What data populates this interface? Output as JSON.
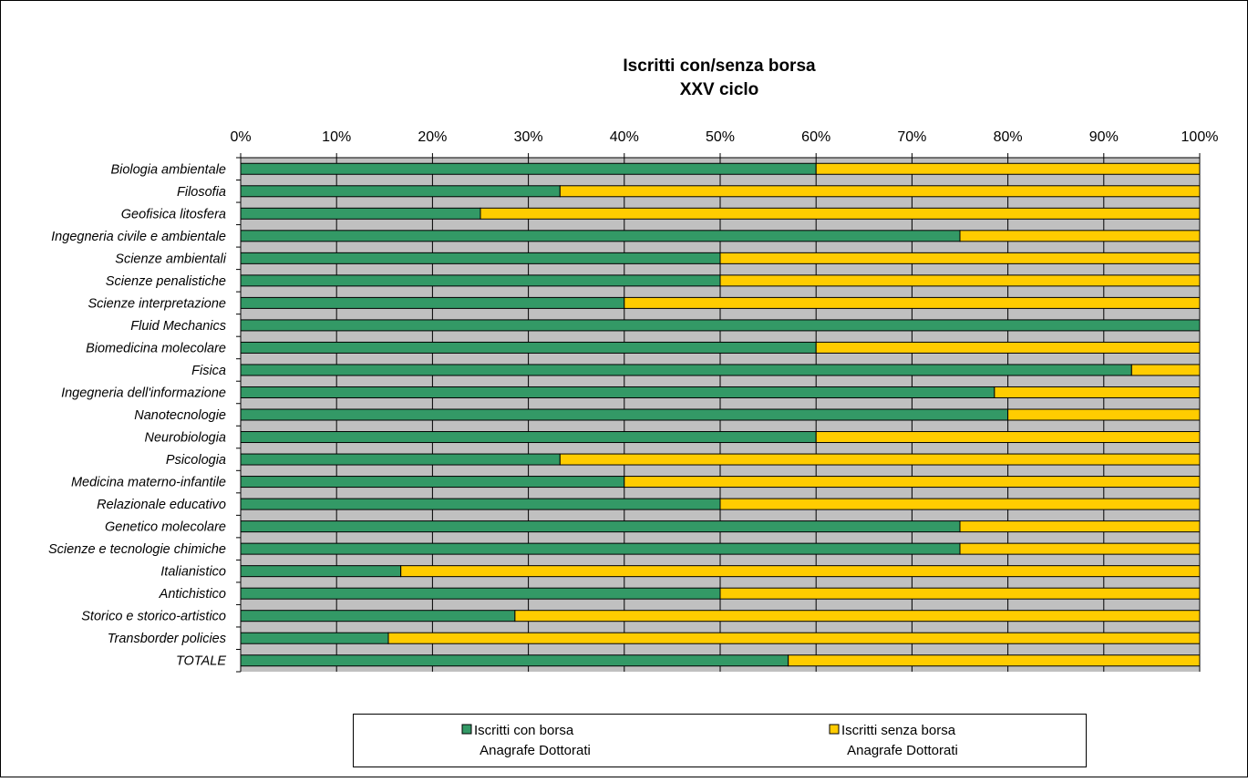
{
  "chart_data": {
    "type": "bar",
    "orientation": "horizontal",
    "stacked": "percent",
    "title": "Iscritti con/senza borsa",
    "subtitle": "XXV ciclo",
    "x_ticks": [
      "0%",
      "10%",
      "20%",
      "30%",
      "40%",
      "50%",
      "60%",
      "70%",
      "80%",
      "90%",
      "100%"
    ],
    "xlim": [
      0,
      100
    ],
    "grid": true,
    "legend_position": "bottom",
    "categories": [
      "Biologia ambientale",
      "Filosofia",
      "Geofisica litosfera",
      "Ingegneria civile e ambientale",
      "Scienze ambientali",
      "Scienze penalistiche",
      "Scienze interpretazione",
      "Fluid Mechanics",
      "Biomedicina molecolare",
      "Fisica",
      "Ingegneria dell'informazione",
      "Nanotecnologie",
      "Neurobiologia",
      "Psicologia",
      "Medicina materno-infantile",
      "Relazionale educativo",
      "Genetico molecolare",
      "Scienze e tecnologie chimiche",
      "Italianistico",
      "Antichistico",
      "Storico e storico-artistico",
      "Transborder policies",
      "TOTALE"
    ],
    "series": [
      {
        "name": "Iscritti con borsa",
        "name_line2": "Anagrafe Dottorati",
        "color": "#339966",
        "values": [
          60,
          33.3,
          25,
          75,
          50,
          50,
          40,
          100,
          60,
          92.9,
          78.6,
          80,
          60,
          33.3,
          40,
          50,
          75,
          75,
          16.7,
          50,
          28.6,
          15.4,
          57.1
        ]
      },
      {
        "name": "Iscritti senza borsa",
        "name_line2": "Anagrafe Dottorati",
        "color": "#FFCC00",
        "values": [
          40,
          66.7,
          75,
          25,
          50,
          50,
          60,
          0,
          40,
          7.1,
          21.4,
          20,
          40,
          66.7,
          60,
          50,
          25,
          25,
          83.3,
          50,
          71.4,
          84.6,
          42.9
        ]
      }
    ],
    "plot_background": "#C0C0C0"
  }
}
